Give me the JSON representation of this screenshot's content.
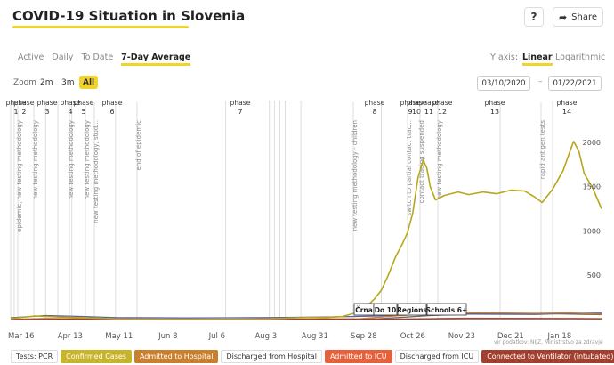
{
  "header": {
    "title": "COVID-19 Situation in Slovenia",
    "help_label": "?",
    "share_label": "Share"
  },
  "tabs": [
    {
      "label": "Active",
      "active": false
    },
    {
      "label": "Daily",
      "active": false
    },
    {
      "label": "To Date",
      "active": false
    },
    {
      "label": "7-Day Average",
      "active": true
    }
  ],
  "yaxis": {
    "label": "Y axis:",
    "options": [
      {
        "label": "Linear",
        "active": true
      },
      {
        "label": "Logarithmic",
        "active": false
      }
    ]
  },
  "zoom": {
    "label": "Zoom",
    "options": [
      {
        "label": "2m",
        "active": false
      },
      {
        "label": "3m",
        "active": false
      },
      {
        "label": "All",
        "active": true
      }
    ]
  },
  "date_range": {
    "from": "03/10/2020",
    "separator": "–",
    "to": "01/22/2021"
  },
  "chart_data": {
    "type": "line",
    "x_ticks": [
      "Mar 16",
      "Apr 13",
      "May 11",
      "Jun 8",
      "Jul 6",
      "Aug 3",
      "Aug 31",
      "Sep 28",
      "Oct 26",
      "Nov 23",
      "Dec 21",
      "Jan 18"
    ],
    "y_ticks": [
      500,
      1000,
      1500,
      2000
    ],
    "ylim": [
      0,
      2450
    ],
    "phase_labels": [
      {
        "top": "phase",
        "num": "1"
      },
      {
        "top": "phase",
        "num": "2"
      },
      {
        "top": "phase",
        "num": "3"
      },
      {
        "top": "phase",
        "num": "4"
      },
      {
        "top": "phase",
        "num": "5"
      },
      {
        "top": "phase",
        "num": "6"
      },
      {
        "top": "phase",
        "num": "7"
      },
      {
        "top": "phase",
        "num": "8"
      },
      {
        "top": "phase",
        "num": "9"
      },
      {
        "top": "phase",
        "num": "10"
      },
      {
        "top": "phase",
        "num": "11"
      },
      {
        "top": "phase",
        "num": "12"
      },
      {
        "top": "phase",
        "num": "13"
      },
      {
        "top": "phase",
        "num": "14"
      }
    ],
    "event_annotations": [
      "epidemic, new testing methodology",
      "new testing methodology",
      "new testing methodology",
      "new testing methodology",
      "new testing methodology, stud...",
      "end of epidemic",
      "new testing methodology - children",
      "switch to partial contact trac...",
      "contact tracing suspended",
      "new testing methodology",
      "rapid antigen tests"
    ],
    "region_badges": [
      "Črna",
      "Do 10",
      "Regions",
      "Schools 6+"
    ],
    "series": [
      {
        "name": "Confirmed Cases",
        "color": "#b8a61c",
        "points": [
          [
            0,
            10
          ],
          [
            14,
            40
          ],
          [
            28,
            28
          ],
          [
            44,
            18
          ],
          [
            58,
            10
          ],
          [
            72,
            4
          ],
          [
            90,
            2
          ],
          [
            120,
            3
          ],
          [
            140,
            6
          ],
          [
            154,
            12
          ],
          [
            164,
            20
          ],
          [
            172,
            25
          ],
          [
            180,
            22
          ],
          [
            190,
            35
          ],
          [
            198,
            80
          ],
          [
            204,
            155
          ],
          [
            208,
            230
          ],
          [
            212,
            330
          ],
          [
            216,
            500
          ],
          [
            220,
            700
          ],
          [
            224,
            850
          ],
          [
            227,
            980
          ],
          [
            230,
            1200
          ],
          [
            233,
            1600
          ],
          [
            236,
            1800
          ],
          [
            238,
            1710
          ],
          [
            240,
            1500
          ],
          [
            243,
            1350
          ],
          [
            248,
            1400
          ],
          [
            256,
            1440
          ],
          [
            262,
            1410
          ],
          [
            270,
            1440
          ],
          [
            278,
            1420
          ],
          [
            286,
            1460
          ],
          [
            294,
            1450
          ],
          [
            300,
            1380
          ],
          [
            304,
            1320
          ],
          [
            310,
            1470
          ],
          [
            316,
            1680
          ],
          [
            320,
            1900
          ],
          [
            322,
            2010
          ],
          [
            325,
            1900
          ],
          [
            328,
            1650
          ],
          [
            333,
            1480
          ],
          [
            338,
            1250
          ]
        ]
      },
      {
        "name": "Admitted to Hospital",
        "color": "#c87f2e",
        "points": [
          [
            0,
            2
          ],
          [
            20,
            12
          ],
          [
            50,
            6
          ],
          [
            150,
            3
          ],
          [
            200,
            10
          ],
          [
            230,
            55
          ],
          [
            250,
            80
          ],
          [
            300,
            70
          ],
          [
            320,
            75
          ],
          [
            338,
            60
          ]
        ]
      },
      {
        "name": "Discharged from Hospital",
        "color": "#666666",
        "points": [
          [
            0,
            0
          ],
          [
            30,
            8
          ],
          [
            60,
            4
          ],
          [
            150,
            2
          ],
          [
            210,
            8
          ],
          [
            240,
            45
          ],
          [
            270,
            70
          ],
          [
            310,
            65
          ],
          [
            338,
            55
          ]
        ]
      },
      {
        "name": "Admitted to ICU",
        "color": "#e6603b",
        "points": [
          [
            0,
            1
          ],
          [
            30,
            4
          ],
          [
            100,
            1
          ],
          [
            220,
            5
          ],
          [
            260,
            15
          ],
          [
            320,
            12
          ],
          [
            338,
            10
          ]
        ]
      },
      {
        "name": "Connected to Ventilator (intubated)",
        "color": "#a33f2f",
        "points": [
          [
            0,
            0
          ],
          [
            30,
            3
          ],
          [
            100,
            1
          ],
          [
            220,
            4
          ],
          [
            260,
            12
          ],
          [
            320,
            10
          ],
          [
            338,
            8
          ]
        ]
      },
      {
        "name": "Tests: PCR",
        "color": "#5b5fa8",
        "points": [
          [
            0,
            20
          ],
          [
            20,
            45
          ],
          [
            40,
            35
          ],
          [
            60,
            22
          ],
          [
            100,
            18
          ],
          [
            150,
            22
          ],
          [
            180,
            28
          ],
          [
            210,
            40
          ],
          [
            230,
            55
          ],
          [
            260,
            62
          ],
          [
            300,
            58
          ],
          [
            320,
            70
          ],
          [
            338,
            72
          ]
        ]
      }
    ]
  },
  "legend": [
    {
      "label": "Tests: PCR",
      "bg": "#ffffff",
      "fg": "#333333"
    },
    {
      "label": "Confirmed Cases",
      "bg": "#c7b42a",
      "fg": "#ffffff"
    },
    {
      "label": "Admitted to Hospital",
      "bg": "#c87f2e",
      "fg": "#ffffff"
    },
    {
      "label": "Discharged from Hospital",
      "bg": "#ffffff",
      "fg": "#333333"
    },
    {
      "label": "Admitted to ICU",
      "bg": "#e6603b",
      "fg": "#ffffff"
    },
    {
      "label": "Discharged from ICU",
      "bg": "#ffffff",
      "fg": "#333333"
    },
    {
      "label": "Connected to Ventilator (intubated)",
      "bg": "#a33f2f",
      "fg": "#ffffff"
    }
  ],
  "credit": "vir podatkov: NIJZ, Ministrstvo za zdravje"
}
